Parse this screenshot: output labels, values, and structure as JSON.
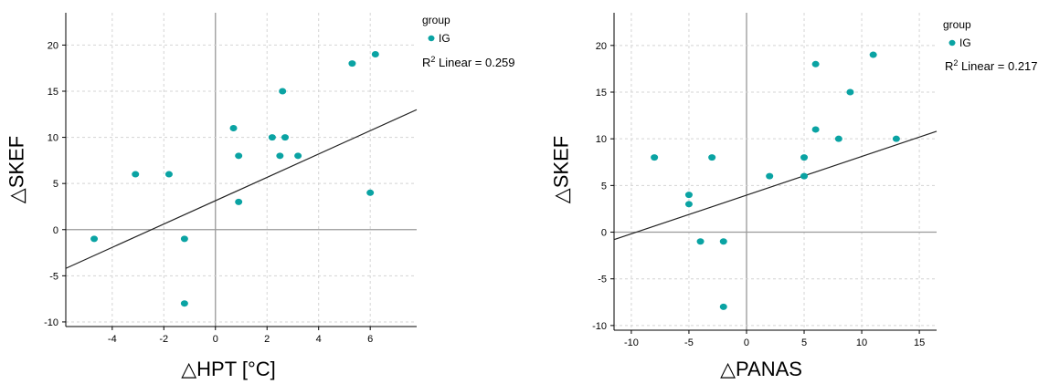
{
  "chart_data": [
    {
      "type": "scatter",
      "xlabel": "△HPT [°C]",
      "ylabel": "△SKEF",
      "xlim": [
        -5.8,
        7.8
      ],
      "ylim": [
        -10.5,
        23.5
      ],
      "xticks": [
        -4,
        -2,
        0,
        2,
        4,
        6
      ],
      "yticks": [
        -10,
        -5,
        0,
        5,
        10,
        15,
        20
      ],
      "grid": true,
      "legend_title": "group",
      "legend_position": "top-right",
      "series": [
        {
          "name": "IG",
          "color": "#0aa3a3",
          "points": [
            {
              "x": -4.7,
              "y": -1
            },
            {
              "x": -3.1,
              "y": 6
            },
            {
              "x": -1.8,
              "y": 6
            },
            {
              "x": -1.2,
              "y": -1
            },
            {
              "x": -1.2,
              "y": -8
            },
            {
              "x": 0.7,
              "y": 11
            },
            {
              "x": 0.9,
              "y": 8
            },
            {
              "x": 0.9,
              "y": 3
            },
            {
              "x": 2.2,
              "y": 10
            },
            {
              "x": 2.5,
              "y": 8
            },
            {
              "x": 2.6,
              "y": 15
            },
            {
              "x": 2.7,
              "y": 10
            },
            {
              "x": 3.2,
              "y": 8
            },
            {
              "x": 5.3,
              "y": 18
            },
            {
              "x": 6.0,
              "y": 4
            },
            {
              "x": 6.2,
              "y": 19
            }
          ]
        }
      ],
      "fit_line": {
        "x1": -5.8,
        "y1": -4.2,
        "x2": 7.8,
        "y2": 13.0
      },
      "r2_prefix": "R",
      "r2_sup": "2",
      "r2_text": " Linear = 0.259"
    },
    {
      "type": "scatter",
      "xlabel": "△PANAS",
      "ylabel": "△SKEF",
      "xlim": [
        -11.5,
        16.5
      ],
      "ylim": [
        -10.5,
        23.5
      ],
      "xticks": [
        -10,
        -5,
        0,
        5,
        10,
        15
      ],
      "yticks": [
        -10,
        -5,
        0,
        5,
        10,
        15,
        20
      ],
      "grid": true,
      "legend_title": "group",
      "legend_position": "top-right",
      "series": [
        {
          "name": "IG",
          "color": "#0aa3a3",
          "points": [
            {
              "x": -8,
              "y": 8
            },
            {
              "x": -5,
              "y": 4
            },
            {
              "x": -5,
              "y": 3
            },
            {
              "x": -4,
              "y": -1
            },
            {
              "x": -3,
              "y": 8
            },
            {
              "x": -2,
              "y": -1
            },
            {
              "x": -2,
              "y": -8
            },
            {
              "x": 2,
              "y": 6
            },
            {
              "x": 5,
              "y": 8
            },
            {
              "x": 5,
              "y": 6
            },
            {
              "x": 6,
              "y": 18
            },
            {
              "x": 6,
              "y": 11
            },
            {
              "x": 8,
              "y": 10
            },
            {
              "x": 9,
              "y": 15
            },
            {
              "x": 11,
              "y": 19
            },
            {
              "x": 13,
              "y": 10
            }
          ]
        }
      ],
      "fit_line": {
        "x1": -11.5,
        "y1": -0.8,
        "x2": 16.5,
        "y2": 10.8
      },
      "r2_prefix": "R",
      "r2_sup": "2",
      "r2_text": " Linear = 0.217"
    }
  ]
}
